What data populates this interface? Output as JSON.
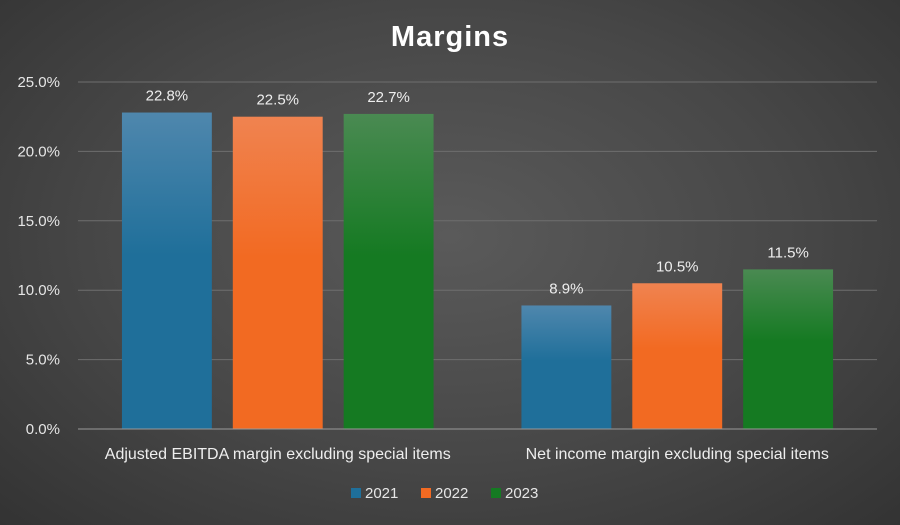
{
  "chart_data": {
    "type": "bar",
    "title": "Margins",
    "categories": [
      "Adjusted EBITDA margin excluding special items",
      "Net income margin excluding special items"
    ],
    "series": [
      {
        "name": "2021",
        "values": [
          22.8,
          8.9
        ],
        "labels": [
          "22.8%",
          "8.9%"
        ],
        "color": "#1f6f9a",
        "color_top": "#4f87ad"
      },
      {
        "name": "2022",
        "values": [
          22.5,
          10.5
        ],
        "labels": [
          "22.5%",
          "10.5%"
        ],
        "color": "#f26a22",
        "color_top": "#f08350"
      },
      {
        "name": "2023",
        "values": [
          22.7,
          11.5
        ],
        "labels": [
          "22.7%",
          "11.5%"
        ],
        "color": "#157a22",
        "color_top": "#4a8a52"
      }
    ],
    "ylim": [
      0,
      25
    ],
    "yticks": [
      "0.0%",
      "5.0%",
      "10.0%",
      "15.0%",
      "20.0%",
      "25.0%"
    ],
    "grid": true,
    "legend_position": "bottom"
  }
}
